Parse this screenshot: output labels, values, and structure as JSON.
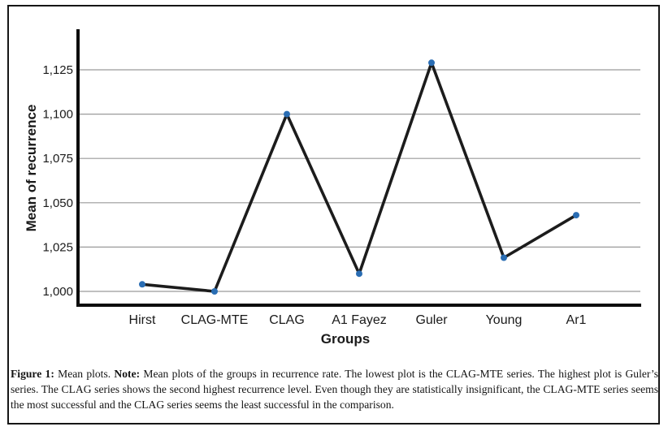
{
  "chart_data": {
    "type": "line",
    "categories": [
      "Hirst",
      "CLAG-MTE",
      "CLAG",
      "A1 Fayez",
      "Guler",
      "Young",
      "Ar1"
    ],
    "values": [
      1004,
      1000,
      1100,
      1010,
      1129,
      1019,
      1043
    ],
    "title": "",
    "xlabel": "Groups",
    "ylabel": "Mean of recurrence",
    "yticks": [
      1000,
      1025,
      1050,
      1075,
      1100,
      1125
    ],
    "ytick_labels": [
      "1,000",
      "1,025",
      "1,050",
      "1,075",
      "1,100",
      "1,125"
    ],
    "ylim": [
      995,
      1135
    ],
    "grid": true,
    "legend_position": "none",
    "line_color": "#1c1c1c",
    "marker_color": "#2a6db3",
    "grid_color": "#9a9a9a",
    "axis_color": "#0d0d0d"
  },
  "figure": {
    "caption": {
      "figure_label": "Figure 1:",
      "intro_text": " Mean plots. ",
      "note_label": "Note:",
      "note_text": " Mean plots of the groups in recurrence rate. The lowest plot is the CLAG-MTE series. The highest plot is Guler’s series. The CLAG series shows the second highest recurrence level. Even though they are statistically insignificant, the CLAG-MTE series seems the most successful and the CLAG series seems the least successful in the comparison."
    }
  }
}
